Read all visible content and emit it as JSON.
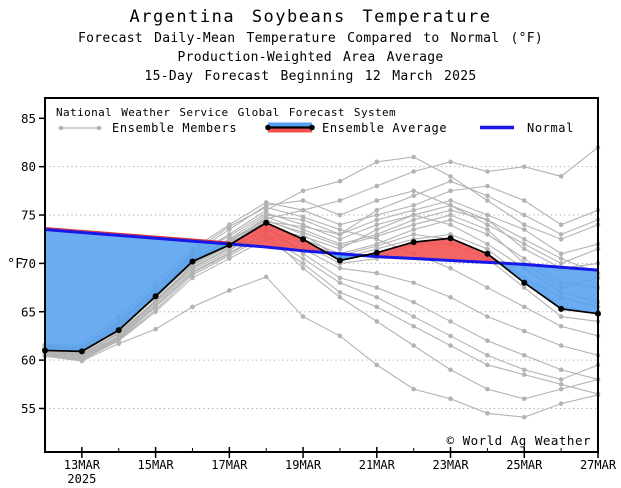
{
  "header": {
    "title": "Argentina Soybeans Temperature",
    "subtitle1": "Forecast Daily-Mean Temperature Compared to Normal (°F)",
    "subtitle2": "Production-Weighted Area Average",
    "subtitle3": "15-Day Forecast Beginning 12 March 2025"
  },
  "legend": {
    "header": "National Weather Service Global Forecast System",
    "members_label": "Ensemble Members",
    "average_label": "Ensemble Average",
    "normal_label": "Normal"
  },
  "watermark": "© World Ag Weather",
  "colors": {
    "normal_line": "#1717e8",
    "warm_fill": "#f35050",
    "warm_edge": "#e03131",
    "cool_fill": "#55a1f0",
    "member_gray": "#b3b3b3",
    "average_black": "#000000",
    "grid_gray": "#a8a8a8",
    "axis_black": "#000000"
  },
  "chart_data": {
    "type": "line",
    "title": "Argentina Soybeans Temperature",
    "xlabel": "",
    "ylabel": "°F",
    "grid": "horizontal-dotted",
    "legend_position": "top-left-inside",
    "x_days": [
      12,
      13,
      14,
      15,
      16,
      17,
      18,
      19,
      20,
      21,
      22,
      23,
      24,
      25,
      26,
      27
    ],
    "x_tick_days": [
      13,
      15,
      17,
      19,
      21,
      23,
      25,
      27
    ],
    "x_tick_labels": [
      "13MAR",
      "15MAR",
      "17MAR",
      "19MAR",
      "21MAR",
      "23MAR",
      "25MAR",
      "27MAR"
    ],
    "x_year_label": "2025",
    "y_ticks": [
      55,
      60,
      65,
      70,
      75,
      80,
      85
    ],
    "y_grid": [
      55,
      60,
      65,
      70,
      75,
      80
    ],
    "ylim": [
      50.5,
      87.1
    ],
    "xlim_days": [
      12,
      27
    ],
    "series": [
      {
        "name": "Ensemble Average",
        "values": [
          61.0,
          60.9,
          63.1,
          66.6,
          70.2,
          71.9,
          74.2,
          72.5,
          70.3,
          71.1,
          72.2,
          72.6,
          71.0,
          68.0,
          65.3,
          64.8
        ]
      },
      {
        "name": "Normal",
        "values": [
          73.5,
          73.2,
          72.9,
          72.6,
          72.3,
          72.0,
          71.7,
          71.3,
          71.0,
          70.7,
          70.5,
          70.3,
          70.1,
          69.9,
          69.6,
          69.3
        ]
      }
    ],
    "ensemble_members": [
      [
        61.2,
        61.0,
        63.0,
        66.5,
        70.0,
        72.0,
        74.5,
        73.0,
        70.5,
        71.5,
        72.5,
        73.0,
        71.5,
        68.5,
        65.5,
        65.0
      ],
      [
        60.8,
        60.5,
        62.5,
        66.0,
        69.5,
        71.5,
        73.5,
        72.0,
        70.0,
        70.5,
        72.0,
        72.0,
        70.5,
        67.5,
        64.5,
        64.0
      ],
      [
        61.5,
        61.3,
        64.0,
        67.5,
        71.0,
        73.5,
        76.0,
        76.5,
        75.0,
        76.5,
        77.5,
        76.0,
        74.0,
        72.0,
        70.0,
        71.5
      ],
      [
        60.5,
        60.0,
        62.0,
        65.0,
        68.5,
        70.5,
        72.5,
        70.0,
        67.0,
        65.5,
        63.5,
        61.5,
        59.5,
        58.5,
        57.5,
        56.5
      ],
      [
        61.0,
        60.8,
        63.5,
        67.0,
        70.5,
        72.5,
        75.0,
        74.5,
        73.0,
        74.5,
        75.5,
        76.5,
        75.0,
        73.5,
        71.0,
        72.0
      ],
      [
        61.3,
        61.1,
        63.2,
        66.8,
        70.8,
        73.0,
        75.5,
        77.5,
        78.5,
        80.5,
        81.0,
        79.0,
        76.5,
        74.0,
        72.5,
        74.0
      ],
      [
        60.6,
        60.2,
        62.2,
        65.5,
        69.0,
        71.0,
        73.0,
        71.5,
        69.5,
        69.0,
        68.0,
        66.5,
        64.5,
        63.0,
        61.5,
        60.5
      ],
      [
        61.6,
        61.5,
        64.5,
        68.0,
        71.5,
        74.0,
        76.3,
        75.5,
        74.0,
        75.0,
        76.0,
        77.5,
        78.0,
        76.5,
        74.0,
        75.5
      ],
      [
        60.9,
        60.7,
        62.8,
        66.2,
        69.8,
        71.8,
        74.0,
        72.5,
        71.0,
        72.0,
        73.5,
        74.5,
        73.0,
        70.5,
        68.0,
        67.5
      ],
      [
        61.1,
        60.9,
        63.3,
        66.4,
        70.1,
        72.2,
        74.8,
        73.5,
        72.0,
        73.0,
        74.5,
        75.5,
        74.5,
        71.5,
        69.5,
        70.0
      ],
      [
        60.4,
        59.9,
        61.7,
        63.2,
        65.5,
        67.2,
        68.6,
        64.5,
        62.5,
        59.5,
        57.0,
        56.0,
        54.5,
        54.1,
        55.5,
        56.4
      ],
      [
        61.4,
        61.2,
        63.8,
        67.2,
        70.9,
        72.8,
        75.2,
        74.0,
        72.5,
        74.0,
        75.0,
        74.0,
        72.0,
        69.5,
        67.0,
        66.0
      ],
      [
        60.7,
        60.4,
        62.4,
        65.8,
        69.3,
        71.3,
        73.8,
        71.0,
        68.5,
        67.5,
        66.0,
        64.0,
        62.0,
        60.5,
        59.0,
        58.0
      ],
      [
        61.2,
        61.0,
        63.6,
        66.9,
        70.4,
        72.4,
        74.6,
        75.5,
        76.5,
        78.0,
        79.5,
        80.5,
        79.5,
        80.0,
        79.0,
        82.0
      ],
      [
        60.8,
        60.6,
        62.9,
        66.1,
        69.6,
        71.6,
        73.6,
        72.8,
        71.5,
        73.5,
        75.0,
        76.0,
        74.5,
        72.5,
        70.5,
        69.0
      ],
      [
        61.0,
        60.8,
        63.1,
        66.6,
        70.2,
        72.1,
        74.3,
        73.8,
        73.0,
        75.5,
        77.0,
        78.5,
        77.0,
        75.0,
        73.0,
        74.5
      ],
      [
        60.5,
        60.1,
        62.1,
        65.2,
        68.8,
        70.8,
        72.8,
        70.5,
        68.0,
        66.5,
        64.5,
        62.5,
        60.5,
        59.0,
        58.0,
        59.5
      ],
      [
        61.3,
        61.2,
        63.9,
        67.4,
        71.2,
        73.8,
        75.8,
        74.8,
        73.5,
        72.5,
        71.0,
        69.5,
        67.5,
        65.5,
        63.5,
        62.5
      ],
      [
        60.9,
        60.6,
        62.7,
        66.0,
        69.9,
        71.9,
        74.1,
        72.2,
        70.8,
        71.8,
        73.0,
        72.5,
        71.0,
        68.5,
        66.5,
        65.5
      ],
      [
        61.1,
        61.0,
        63.4,
        66.7,
        70.3,
        72.3,
        74.4,
        73.2,
        71.8,
        72.8,
        74.0,
        75.0,
        73.5,
        70.0,
        67.5,
        68.5
      ],
      [
        60.6,
        60.3,
        62.3,
        65.6,
        69.1,
        71.1,
        73.2,
        69.5,
        66.5,
        64.0,
        61.5,
        59.0,
        57.0,
        56.0,
        57.0,
        58.0
      ]
    ]
  }
}
